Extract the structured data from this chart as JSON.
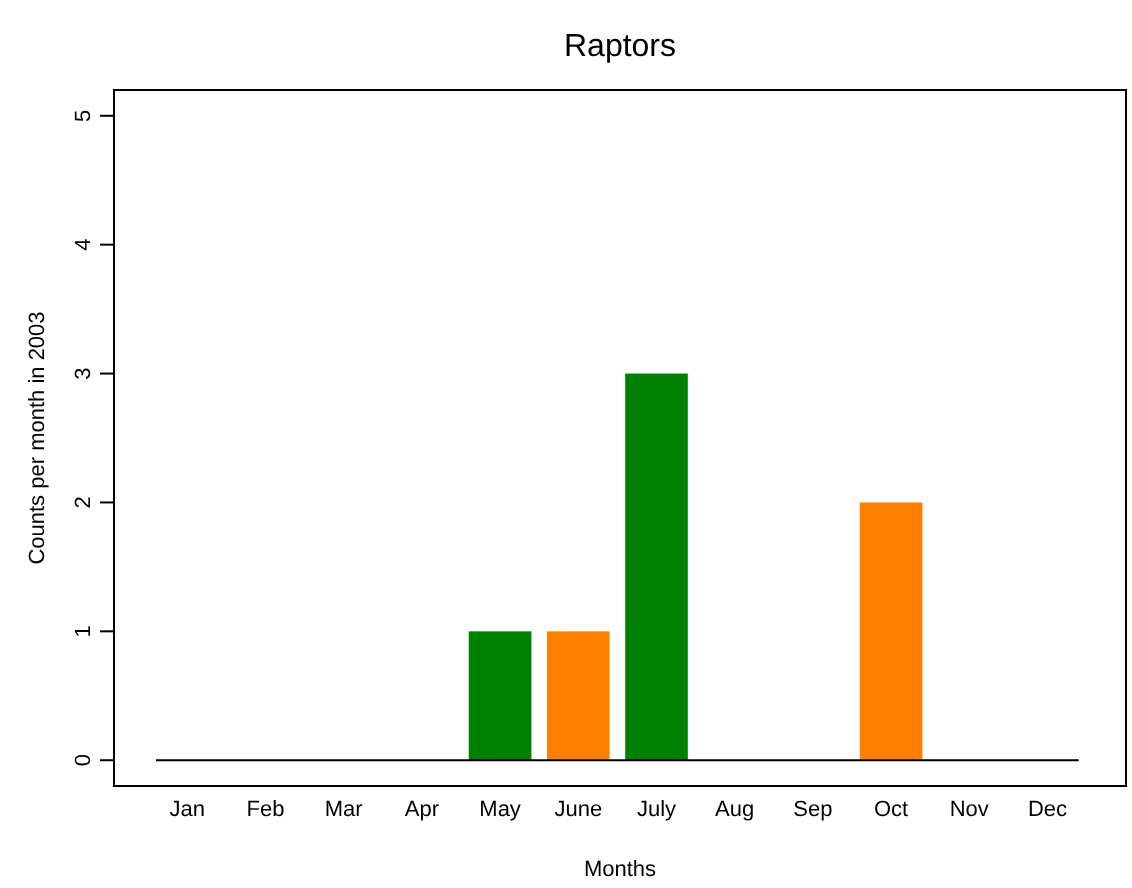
{
  "chart_data": {
    "type": "bar",
    "title": "Raptors",
    "xlabel": "Months",
    "ylabel": "Counts per month in 2003",
    "categories": [
      "Jan",
      "Feb",
      "Mar",
      "Apr",
      "May",
      "June",
      "July",
      "Aug",
      "Sep",
      "Oct",
      "Nov",
      "Dec"
    ],
    "values": [
      0,
      0,
      0,
      0,
      1,
      1,
      3,
      0,
      0,
      2,
      0,
      0
    ],
    "colors": [
      "#008000",
      "#ff8000",
      "#008000",
      "#ff8000",
      "#008000",
      "#ff8000",
      "#008000",
      "#ff8000",
      "#008000",
      "#ff8000",
      "#008000",
      "#ff8000"
    ],
    "ylim": [
      -0.2,
      5.2
    ],
    "yticks": [
      0,
      1,
      2,
      3,
      4,
      5
    ]
  }
}
